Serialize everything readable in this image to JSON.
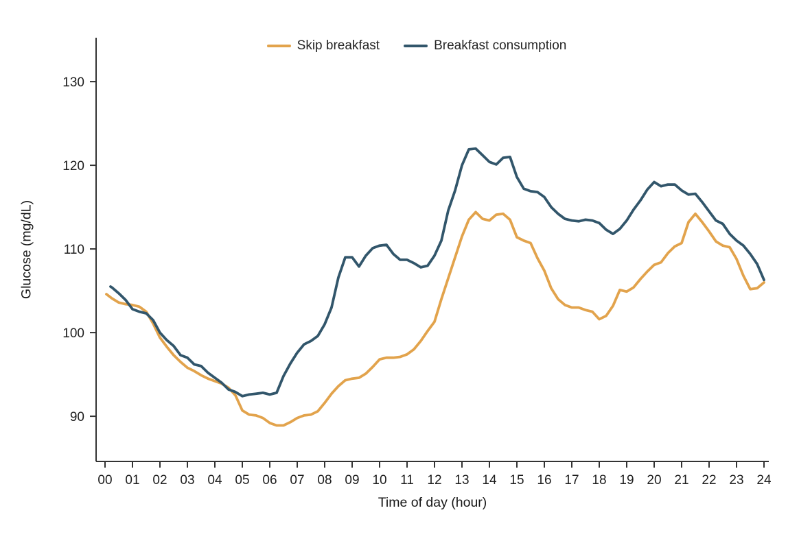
{
  "chart_data": {
    "type": "line",
    "title": "",
    "xlabel": "Time of day (hour)",
    "ylabel": "Glucose (mg/dL)",
    "grid": false,
    "legend_position": "top-center",
    "xlim": [
      -0.325,
      24.175
    ],
    "ylim": [
      84.6,
      135.25
    ],
    "x_ticks": [
      0,
      1,
      2,
      3,
      4,
      5,
      6,
      7,
      8,
      9,
      10,
      11,
      12,
      13,
      14,
      15,
      16,
      17,
      18,
      19,
      20,
      21,
      22,
      23,
      24
    ],
    "x_tick_labels": [
      "00",
      "01",
      "02",
      "03",
      "04",
      "05",
      "06",
      "07",
      "08",
      "09",
      "10",
      "11",
      "12",
      "13",
      "14",
      "15",
      "16",
      "17",
      "18",
      "19",
      "20",
      "21",
      "22",
      "23",
      "24"
    ],
    "y_ticks": [
      90,
      100,
      110,
      120,
      130
    ],
    "y_tick_labels": [
      "90",
      "100",
      "110",
      "120",
      "130"
    ],
    "axis_color": "#333333",
    "series": [
      {
        "name": "Skip breakfast",
        "color": "#E2A34C",
        "x": [
          0.05,
          0.25,
          0.5,
          0.75,
          1,
          1.25,
          1.5,
          1.75,
          2,
          2.25,
          2.5,
          2.75,
          3,
          3.25,
          3.5,
          3.75,
          4,
          4.25,
          4.5,
          4.75,
          5,
          5.25,
          5.5,
          5.75,
          6,
          6.25,
          6.5,
          6.75,
          7,
          7.25,
          7.5,
          7.75,
          8,
          8.25,
          8.5,
          8.75,
          9,
          9.25,
          9.5,
          9.75,
          10,
          10.25,
          10.5,
          10.75,
          11,
          11.25,
          11.5,
          11.75,
          12,
          12.25,
          12.5,
          12.75,
          13,
          13.25,
          13.5,
          13.75,
          14,
          14.25,
          14.5,
          14.75,
          15,
          15.25,
          15.5,
          15.75,
          16,
          16.25,
          16.5,
          16.75,
          17,
          17.25,
          17.5,
          17.75,
          18,
          18.25,
          18.5,
          18.75,
          19,
          19.25,
          19.5,
          19.75,
          20,
          20.25,
          20.5,
          20.75,
          21,
          21.25,
          21.5,
          21.75,
          22,
          22.25,
          22.5,
          22.75,
          23,
          23.25,
          23.5,
          23.75,
          24
        ],
        "values": [
          104.6,
          104.1,
          103.6,
          103.4,
          103.3,
          103.1,
          102.5,
          101.1,
          99.4,
          98.3,
          97.3,
          96.5,
          95.8,
          95.4,
          94.9,
          94.5,
          94.2,
          93.9,
          93.4,
          92.5,
          90.7,
          90.2,
          90.1,
          89.8,
          89.2,
          88.9,
          88.9,
          89.3,
          89.8,
          90.1,
          90.2,
          90.6,
          91.6,
          92.7,
          93.6,
          94.3,
          94.5,
          94.6,
          95.1,
          95.9,
          96.8,
          97.0,
          97.0,
          97.1,
          97.4,
          98.0,
          99.0,
          100.2,
          101.3,
          104.0,
          106.5,
          109.0,
          111.5,
          113.5,
          114.4,
          113.6,
          113.4,
          114.1,
          114.2,
          113.5,
          111.4,
          111.0,
          110.7,
          108.9,
          107.4,
          105.3,
          104.0,
          103.3,
          103.0,
          103.0,
          102.7,
          102.5,
          101.6,
          102.0,
          103.2,
          105.1,
          104.9,
          105.4,
          106.4,
          107.3,
          108.1,
          108.4,
          109.5,
          110.3,
          110.7,
          113.2,
          114.2,
          113.2,
          112.1,
          110.9,
          110.4,
          110.2,
          108.8,
          106.8,
          105.2,
          105.3,
          106.0
        ]
      },
      {
        "name": "Breakfast consumption",
        "color": "#32566B",
        "x": [
          0.2,
          0.25,
          0.5,
          0.75,
          1,
          1.25,
          1.5,
          1.75,
          2,
          2.25,
          2.5,
          2.75,
          3,
          3.25,
          3.5,
          3.75,
          4,
          4.25,
          4.5,
          4.75,
          5,
          5.25,
          5.5,
          5.75,
          6,
          6.25,
          6.5,
          6.75,
          7,
          7.25,
          7.5,
          7.75,
          8,
          8.25,
          8.5,
          8.75,
          9,
          9.25,
          9.5,
          9.75,
          10,
          10.25,
          10.5,
          10.75,
          11,
          11.25,
          11.5,
          11.75,
          12,
          12.25,
          12.5,
          12.75,
          13,
          13.25,
          13.5,
          13.75,
          14,
          14.25,
          14.5,
          14.75,
          15,
          15.25,
          15.5,
          15.75,
          16,
          16.25,
          16.5,
          16.75,
          17,
          17.25,
          17.5,
          17.75,
          18,
          18.25,
          18.5,
          18.75,
          19,
          19.25,
          19.5,
          19.75,
          20,
          20.25,
          20.5,
          20.75,
          21,
          21.25,
          21.5,
          21.75,
          22,
          22.25,
          22.5,
          22.75,
          23,
          23.25,
          23.5,
          23.75,
          24
        ],
        "values": [
          105.5,
          105.4,
          104.7,
          103.9,
          102.8,
          102.5,
          102.3,
          101.5,
          100.0,
          99.1,
          98.4,
          97.3,
          97.0,
          96.2,
          96.0,
          95.2,
          94.6,
          94.0,
          93.2,
          92.9,
          92.4,
          92.6,
          92.7,
          92.8,
          92.6,
          92.8,
          94.8,
          96.3,
          97.6,
          98.6,
          99.0,
          99.6,
          101.0,
          103.0,
          106.6,
          109.0,
          109.0,
          107.9,
          109.2,
          110.1,
          110.4,
          110.5,
          109.4,
          108.7,
          108.7,
          108.3,
          107.8,
          108.0,
          109.2,
          111.0,
          114.6,
          117.0,
          120.0,
          121.9,
          122.0,
          121.2,
          120.4,
          120.1,
          120.9,
          121.0,
          118.6,
          117.2,
          116.9,
          116.8,
          116.2,
          115.0,
          114.2,
          113.6,
          113.4,
          113.3,
          113.5,
          113.4,
          113.1,
          112.3,
          111.8,
          112.4,
          113.4,
          114.7,
          115.8,
          117.1,
          118.0,
          117.5,
          117.7,
          117.7,
          117.0,
          116.5,
          116.6,
          115.6,
          114.5,
          113.4,
          113.0,
          111.8,
          111.0,
          110.4,
          109.4,
          108.2,
          106.3
        ]
      }
    ]
  }
}
